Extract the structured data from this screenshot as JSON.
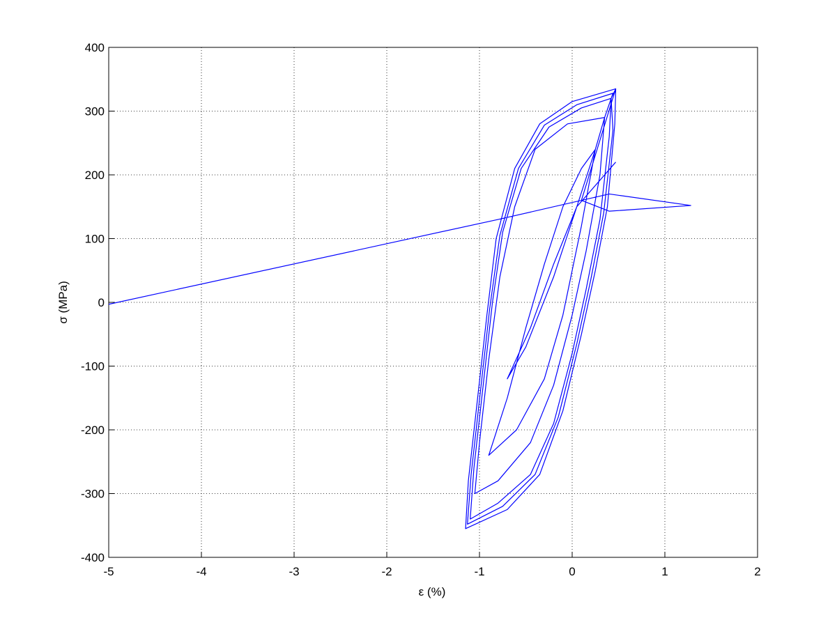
{
  "chart_data": {
    "type": "line",
    "xlabel": "ε (%)",
    "ylabel": "σ (MPa)",
    "color": "#0000ff",
    "grid": true,
    "xlim": [
      -5,
      2
    ],
    "ylim": [
      -400,
      400
    ],
    "xticks": [
      -5,
      -4,
      -3,
      -2,
      -1,
      0,
      1,
      2
    ],
    "yticks": [
      -400,
      -300,
      -200,
      -100,
      0,
      100,
      200,
      300,
      400
    ],
    "x": [
      -5,
      -0.8,
      0.4,
      1.28,
      0.4,
      0.1,
      0.47,
      0.46,
      0.38,
      0.25,
      0.1,
      -0.1,
      -0.35,
      -0.7,
      -1.15,
      -1.12,
      -1.02,
      -0.92,
      -0.82,
      -0.62,
      -0.35,
      0,
      0.47,
      0.42,
      0.4,
      0.3,
      0.15,
      0,
      -0.2,
      -0.45,
      -0.8,
      -1.1,
      -1.06,
      -0.96,
      -0.86,
      -0.75,
      -0.55,
      -0.25,
      0.1,
      0.42,
      0.44,
      0.34,
      0.2,
      0.05,
      -0.15,
      -0.4,
      -0.75,
      -1.13,
      -1.09,
      -0.99,
      -0.89,
      -0.78,
      -0.58,
      -0.3,
      0.05,
      0.44,
      0.35,
      0.3,
      0.15,
      0,
      -0.2,
      -0.45,
      -0.8,
      -1.05,
      -1.0,
      -0.9,
      -0.78,
      -0.62,
      -0.4,
      -0.05,
      0.35,
      0.25,
      0.1,
      -0.1,
      -0.3,
      -0.6,
      -0.9,
      -0.7,
      -0.5,
      -0.3,
      -0.1,
      0.1,
      0.25,
      0.05,
      -0.2,
      -0.5,
      -0.7,
      -0.45,
      -0.2,
      0.05,
      0.47
    ],
    "values": [
      -3,
      130,
      170,
      152,
      143,
      160,
      335,
      280,
      150,
      50,
      -50,
      -170,
      -270,
      -325,
      -355,
      -280,
      -150,
      -20,
      100,
      210,
      280,
      315,
      335,
      320,
      260,
      130,
      20,
      -80,
      -190,
      -270,
      -315,
      -340,
      -260,
      -130,
      0,
      110,
      210,
      275,
      305,
      320,
      270,
      140,
      35,
      -65,
      -180,
      -270,
      -320,
      -348,
      -270,
      -140,
      -10,
      105,
      210,
      278,
      310,
      328,
      290,
      200,
      80,
      -20,
      -130,
      -220,
      -280,
      -300,
      -220,
      -90,
      40,
      150,
      240,
      280,
      290,
      240,
      120,
      -20,
      -120,
      -200,
      -240,
      -150,
      -40,
      60,
      150,
      210,
      240,
      150,
      40,
      -70,
      -120,
      -40,
      60,
      150,
      220
    ]
  }
}
